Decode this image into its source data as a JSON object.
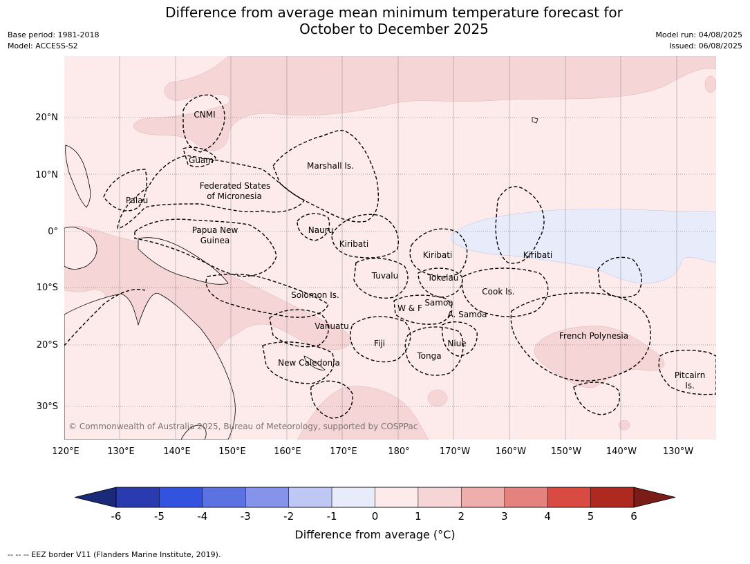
{
  "header": {
    "title_line1": "Difference from average mean minimum temperature forecast for",
    "title_line2": "October to December 2025",
    "base_period": "Base period: 1981-2018",
    "model": "Model: ACCESS-S2",
    "model_run": "Model run: 04/08/2025",
    "issued": "Issued: 06/08/2025"
  },
  "map": {
    "lat_labels": [
      "20°N",
      "10°N",
      "0°",
      "10°S",
      "20°S",
      "30°S"
    ],
    "lon_labels": [
      "120°E",
      "130°E",
      "140°E",
      "150°E",
      "160°E",
      "170°E",
      "180°",
      "170°W",
      "160°W",
      "150°W",
      "140°W",
      "130°W"
    ],
    "region_labels": {
      "cnmi": "CNMI",
      "guam": "Guam",
      "marshall": "Marshall Is.",
      "fsm_line1": "Federated States",
      "fsm_line2": "of Micronesia",
      "palau": "Palau",
      "png_line1": "Papua New",
      "png_line2": "Guinea",
      "nauru": "Nauru",
      "kiribati_west": "Kiribati",
      "kiribati_central": "Kiribati",
      "kiribati_east": "Kiribati",
      "tuvalu": "Tuvalu",
      "tokelau": "Tokelau",
      "cook": "Cook Is.",
      "solomon": "Solomon Is.",
      "samoa": "Samoa",
      "wf": "W & F",
      "asamoa": "A. Samoa",
      "vanuatu": "Vanuatu",
      "fiji": "Fiji",
      "niue": "Niue",
      "tonga": "Tonga",
      "french_polynesia": "French Polynesia",
      "new_caledonia": "New Caledonia",
      "pitcairn_line1": "Pitcairn",
      "pitcairn_line2": "Is."
    },
    "copyright": "© Commonwealth of Australia 2025, Bureau of Meteorology, supported by COSPPac",
    "colors": {
      "ocean_base": "#fcebea",
      "warm_band": "#f5d5d5",
      "cool_band": "#e8ebfa"
    }
  },
  "colorbar": {
    "ticks": [
      "-6",
      "-5",
      "-4",
      "-3",
      "-2",
      "-1",
      "0",
      "1",
      "2",
      "3",
      "4",
      "5",
      "6"
    ],
    "colors": [
      "#2a3bb0",
      "#3352e0",
      "#5a72e2",
      "#8594ea",
      "#bfc7f4",
      "#e8ebfa",
      "#fcebea",
      "#f5d5d5",
      "#eeaeab",
      "#e4837e",
      "#d94a42",
      "#ae2a20"
    ],
    "under_color": "#1b2a78",
    "over_color": "#7a1c18",
    "label": "Difference from average (°C)"
  },
  "footer": {
    "legend": "--  --  -- EEZ border V11 (Flanders Marine Institute, 2019)."
  }
}
